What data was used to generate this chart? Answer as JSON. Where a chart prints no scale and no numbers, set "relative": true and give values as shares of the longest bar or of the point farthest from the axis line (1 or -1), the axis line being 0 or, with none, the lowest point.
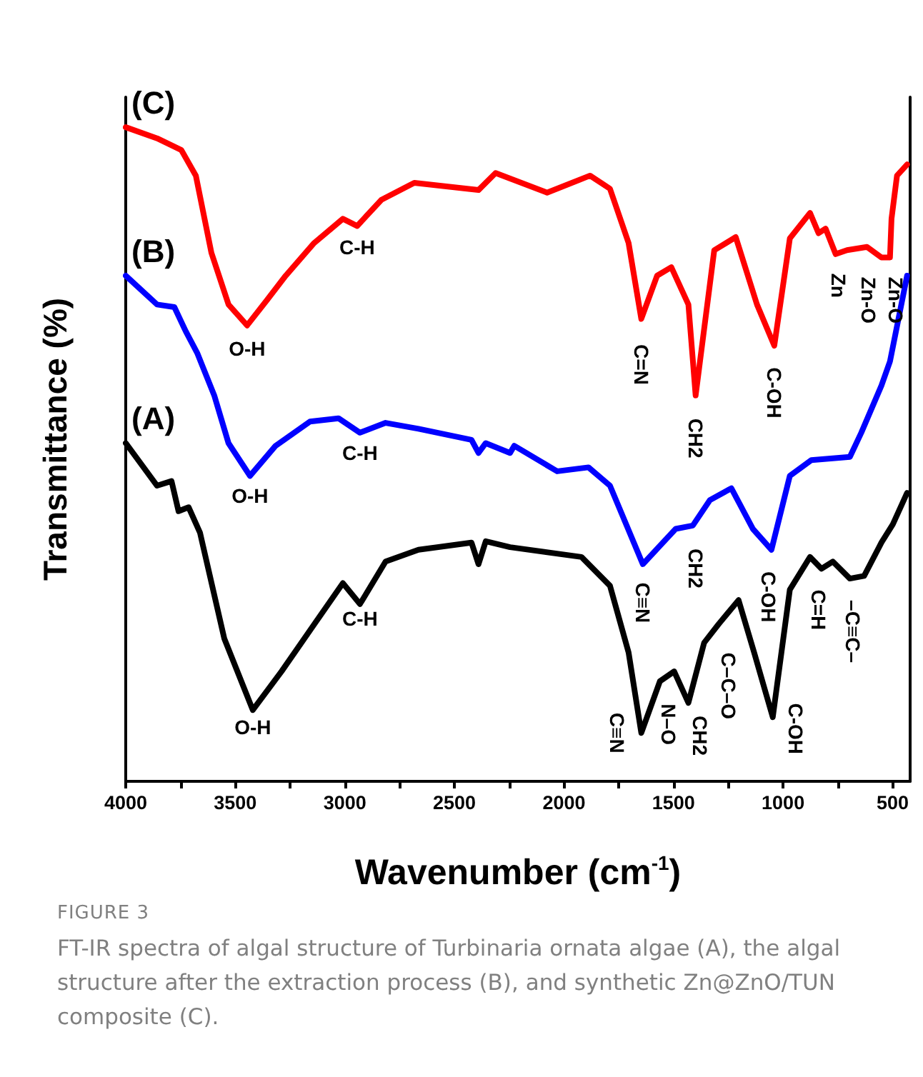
{
  "chart_data": {
    "type": "line",
    "relative": true,
    "xlabel": "Wavenumber (cm$^{-1}$)",
    "ylabel": "Transmittance (%)",
    "xlim": [
      4000,
      420
    ],
    "xticks": [
      4000,
      {
        "value": 3750,
        "label": null
      },
      3500,
      {
        "value": 3250,
        "label": null
      },
      3000,
      {
        "value": 2750,
        "label": null
      },
      2500,
      {
        "value": 2250,
        "label": null
      },
      2000,
      {
        "value": 1750,
        "label": null
      },
      1500,
      {
        "value": 1250,
        "label": null
      },
      1000,
      {
        "value": 750,
        "label": null
      },
      500
    ],
    "grid": false,
    "legend": false,
    "marker": "none",
    "line_style": "solid",
    "series": [
      {
        "name": "(C)",
        "color": "#ff0000",
        "x": [
          4000,
          3857,
          3746,
          3680,
          3609,
          3531,
          3446,
          3355,
          3270,
          3140,
          3009,
          2944,
          2833,
          2683,
          2442,
          2390,
          2312,
          2077,
          1881,
          1790,
          1705,
          1647,
          1575,
          1510,
          1432,
          1399,
          1314,
          1216,
          1119,
          1040,
          969,
          877,
          838,
          806,
          760,
          708,
          617,
          551,
          512,
          505,
          480,
          434
        ],
        "values": [
          1.0,
          0.983,
          0.965,
          0.926,
          0.808,
          0.729,
          0.697,
          0.736,
          0.773,
          0.823,
          0.86,
          0.849,
          0.889,
          0.915,
          0.906,
          0.904,
          0.93,
          0.9,
          0.926,
          0.906,
          0.823,
          0.707,
          0.773,
          0.786,
          0.729,
          0.59,
          0.812,
          0.832,
          0.729,
          0.666,
          0.83,
          0.869,
          0.838,
          0.845,
          0.806,
          0.812,
          0.817,
          0.801,
          0.801,
          0.86,
          0.926,
          0.943
        ]
      },
      {
        "name": "(B)",
        "color": "#0000ff",
        "x": [
          4000,
          3857,
          3778,
          3726,
          3674,
          3596,
          3531,
          3433,
          3316,
          3159,
          3029,
          2931,
          2814,
          2664,
          2422,
          2390,
          2357,
          2246,
          2227,
          2031,
          1888,
          1790,
          1640,
          1490,
          1412,
          1334,
          1236,
          1138,
          1053,
          969,
          871,
          695,
          643,
          551,
          512,
          434
        ],
        "values": [
          0.773,
          0.729,
          0.725,
          0.688,
          0.655,
          0.59,
          0.517,
          0.467,
          0.513,
          0.55,
          0.555,
          0.533,
          0.548,
          0.539,
          0.522,
          0.502,
          0.517,
          0.502,
          0.513,
          0.474,
          0.48,
          0.452,
          0.332,
          0.386,
          0.391,
          0.43,
          0.448,
          0.386,
          0.354,
          0.467,
          0.491,
          0.496,
          0.533,
          0.605,
          0.642,
          0.773
        ]
      },
      {
        "name": "(A)",
        "color": "#000000",
        "x": [
          4000,
          3857,
          3791,
          3759,
          3713,
          3661,
          3550,
          3420,
          3289,
          3140,
          3009,
          2931,
          2814,
          2664,
          2422,
          2390,
          2357,
          2246,
          1920,
          1790,
          1705,
          1647,
          1562,
          1497,
          1432,
          1360,
          1295,
          1203,
          1132,
          1047,
          969,
          877,
          825,
          773,
          695,
          630,
          551,
          499,
          434
        ],
        "values": [
          0.517,
          0.452,
          0.459,
          0.413,
          0.419,
          0.38,
          0.218,
          0.109,
          0.168,
          0.24,
          0.303,
          0.271,
          0.336,
          0.354,
          0.365,
          0.332,
          0.367,
          0.358,
          0.343,
          0.299,
          0.197,
          0.074,
          0.153,
          0.168,
          0.12,
          0.212,
          0.24,
          0.277,
          0.197,
          0.098,
          0.293,
          0.343,
          0.325,
          0.336,
          0.31,
          0.314,
          0.365,
          0.393,
          0.441
        ]
      }
    ],
    "annotations": [
      {
        "text": "O-H",
        "x": 3446,
        "y": 0.697
      },
      {
        "text": "C-H",
        "x": 2944,
        "y": 0.849
      },
      {
        "text": "C=N",
        "x": 1647,
        "y": 0.707
      },
      {
        "text": "CH2",
        "x": 1399,
        "y": 0.59
      },
      {
        "text": "C-OH",
        "x": 1040,
        "y": 0.666
      },
      {
        "text": "Zn",
        "x": 760,
        "y": 0.806
      },
      {
        "text": "Zn-O",
        "x": 551,
        "y": 0.801
      },
      {
        "text": "Zn-O",
        "x": 512,
        "y": 0.801
      },
      {
        "text": "O-H",
        "x": 3433,
        "y": 0.467
      },
      {
        "text": "C-H",
        "x": 2931,
        "y": 0.533
      },
      {
        "text": "CH2",
        "x": 1412,
        "y": 0.391
      },
      {
        "text": "C≡N",
        "x": 1640,
        "y": 0.332
      },
      {
        "text": "C-OH",
        "x": 1053,
        "y": 0.354
      },
      {
        "text": "O-H",
        "x": 3420,
        "y": 0.109
      },
      {
        "text": "C-H",
        "x": 2931,
        "y": 0.271
      },
      {
        "text": "C≡N",
        "x": 1647,
        "y": 0.074
      },
      {
        "text": "N–O",
        "x": 1497,
        "y": 0.168
      },
      {
        "text": "CH2",
        "x": 1432,
        "y": 0.12
      },
      {
        "text": "C–C–O",
        "x": 1203,
        "y": 0.277
      },
      {
        "text": "C-OH",
        "x": 1047,
        "y": 0.098
      },
      {
        "text": "C=H",
        "x": 877,
        "y": 0.343
      },
      {
        "text": "–C≡C–",
        "x": 695,
        "y": 0.31
      },
      "FIGURE 3",
      "FT-IR spectra of algal structure of Turbinaria ornata algae (A), the algal structure after the extraction process (B), and synthetic Zn@ZnO/TUN composite (C)."
    ]
  }
}
